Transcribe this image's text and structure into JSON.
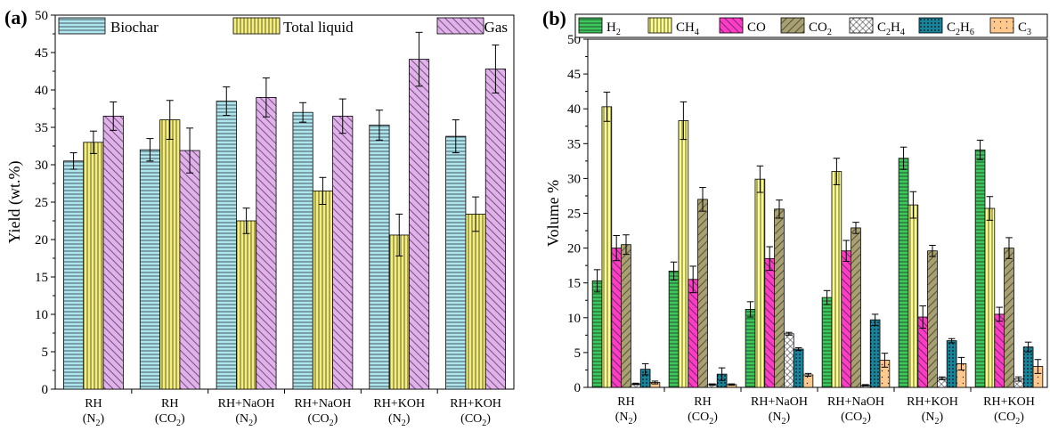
{
  "panel_a": {
    "label": "(a)",
    "chart_data": {
      "type": "bar",
      "categories": [
        {
          "line1": "RH",
          "line2_main": "(N",
          "line2_sub": "2",
          "line2_end": ")"
        },
        {
          "line1": "RH",
          "line2_main": "(CO",
          "line2_sub": "2",
          "line2_end": ")"
        },
        {
          "line1": "RH+NaOH",
          "line2_main": "(N",
          "line2_sub": "2",
          "line2_end": ")"
        },
        {
          "line1": "RH+NaOH",
          "line2_main": "(CO",
          "line2_sub": "2",
          "line2_end": ")"
        },
        {
          "line1": "RH+KOH",
          "line2_main": "(N",
          "line2_sub": "2",
          "line2_end": ")"
        },
        {
          "line1": "RH+KOH",
          "line2_main": "(CO",
          "line2_sub": "2",
          "line2_end": ")"
        }
      ],
      "series": [
        {
          "name": "Biochar",
          "color": "#aee6f0",
          "pattern": "horizontal-lines",
          "values": [
            30.5,
            32.0,
            38.5,
            37.0,
            35.3,
            33.8
          ],
          "errors": [
            1.1,
            1.5,
            1.9,
            1.3,
            2.0,
            2.2
          ]
        },
        {
          "name": "Total liquid",
          "color": "#f6f07a",
          "pattern": "vertical-lines",
          "values": [
            33.0,
            36.0,
            22.5,
            26.5,
            20.6,
            23.4
          ],
          "errors": [
            1.5,
            2.6,
            1.7,
            1.8,
            2.8,
            2.3
          ]
        },
        {
          "name": "Gas",
          "color": "#e2b0ec",
          "pattern": "diagonal-lines",
          "values": [
            36.5,
            31.9,
            39.0,
            36.5,
            44.1,
            42.8
          ],
          "errors": [
            1.9,
            3.0,
            2.6,
            2.3,
            3.6,
            3.2
          ]
        }
      ],
      "ylabel": "Yield (wt.%)",
      "ylim": [
        0,
        50
      ],
      "yticks": [
        "0",
        "5",
        "10",
        "15",
        "20",
        "25",
        "30",
        "35",
        "40",
        "45",
        "50"
      ],
      "legend_position": "top"
    }
  },
  "panel_b": {
    "label": "(b)",
    "chart_data": {
      "type": "bar",
      "categories": [
        {
          "line1": "RH",
          "line2_main": "(N",
          "line2_sub": "2",
          "line2_end": ")"
        },
        {
          "line1": "RH",
          "line2_main": "(CO",
          "line2_sub": "2",
          "line2_end": ")"
        },
        {
          "line1": "RH+NaOH",
          "line2_main": "(N",
          "line2_sub": "2",
          "line2_end": ")"
        },
        {
          "line1": "RH+NaOH",
          "line2_main": "(CO",
          "line2_sub": "2",
          "line2_end": ")"
        },
        {
          "line1": "RH+KOH",
          "line2_main": "(N",
          "line2_sub": "2",
          "line2_end": ")"
        },
        {
          "line1": "RH+KOH",
          "line2_main": "(CO",
          "line2_sub": "2",
          "line2_end": ")"
        }
      ],
      "series": [
        {
          "name_main": "H",
          "name_sub": "2",
          "color": "#3cc85a",
          "pattern": "horizontal-lines",
          "values": [
            15.3,
            16.7,
            11.2,
            12.9,
            32.9,
            34.1
          ],
          "errors": [
            1.6,
            1.3,
            1.1,
            1.0,
            1.6,
            1.4
          ]
        },
        {
          "name_main": "CH",
          "name_sub": "4",
          "color": "#ffff8c",
          "pattern": "vertical-lines",
          "values": [
            40.3,
            38.3,
            29.9,
            31.0,
            26.2,
            25.7
          ],
          "errors": [
            2.1,
            2.7,
            1.9,
            1.9,
            1.9,
            1.7
          ]
        },
        {
          "name_main": "CO",
          "name_sub": "",
          "color": "#ff3cc8",
          "pattern": "diagonal-lines",
          "values": [
            20.0,
            15.5,
            18.5,
            19.6,
            10.1,
            10.5
          ],
          "errors": [
            1.8,
            1.9,
            1.7,
            1.5,
            1.6,
            1.0
          ]
        },
        {
          "name_main": "CO",
          "name_sub": "2",
          "color": "#a8a070",
          "pattern": "anti-diagonal-lines",
          "values": [
            20.5,
            27.0,
            25.6,
            22.9,
            19.6,
            20.0
          ],
          "errors": [
            1.4,
            1.7,
            1.3,
            0.8,
            0.8,
            1.5
          ]
        },
        {
          "name_main": "C",
          "name_sub": "2",
          "name_tail": "H",
          "name_tail_sub": "4",
          "color": "#ffffff",
          "pattern": "crosshatch",
          "values": [
            0.5,
            0.4,
            7.7,
            0.3,
            1.3,
            1.2
          ],
          "errors": [
            0.1,
            0.1,
            0.2,
            0.1,
            0.2,
            0.3
          ]
        },
        {
          "name_main": "C",
          "name_sub": "2",
          "name_tail": "H",
          "name_tail_sub": "6",
          "color": "#17849c",
          "pattern": "dots-dense",
          "values": [
            2.6,
            1.9,
            5.5,
            9.7,
            6.7,
            5.8
          ],
          "errors": [
            0.8,
            0.9,
            0.2,
            0.8,
            0.3,
            0.7
          ]
        },
        {
          "name_main": "C",
          "name_sub": "3",
          "color": "#ffc88c",
          "pattern": "dots-sparse",
          "values": [
            0.7,
            0.4,
            1.8,
            3.9,
            3.4,
            3.0
          ],
          "errors": [
            0.2,
            0.1,
            0.2,
            1.0,
            0.9,
            1.0
          ]
        }
      ],
      "ylabel": "Volume %",
      "ylim": [
        0,
        50
      ],
      "yticks": [
        "0",
        "5",
        "10",
        "15",
        "20",
        "25",
        "30",
        "35",
        "40",
        "45",
        "50"
      ],
      "legend_position": "top"
    }
  }
}
